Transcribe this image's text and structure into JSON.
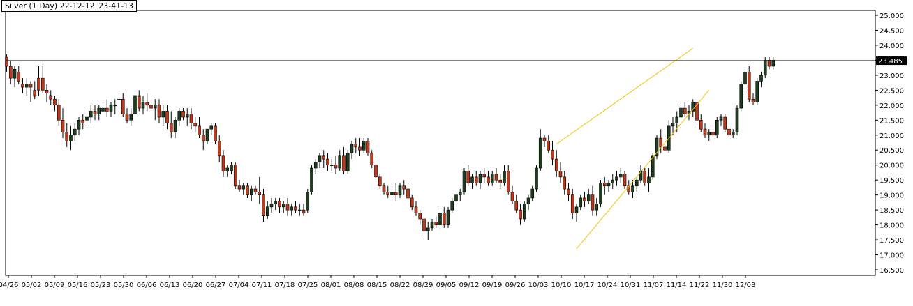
{
  "chart_data": {
    "type": "candlestick",
    "title": "Silver (1 Day) 22-12-12_23-41-13",
    "current_price": 23.485,
    "current_price_label": "23.485",
    "ylim": [
      16.2,
      25.1
    ],
    "yticks": [
      "25.000",
      "24.500",
      "24.000",
      "23.500",
      "23.000",
      "22.500",
      "22.000",
      "21.500",
      "21.000",
      "20.500",
      "20.000",
      "19.500",
      "19.000",
      "18.500",
      "18.000",
      "17.500",
      "17.000",
      "16.500"
    ],
    "xticks": [
      "04/26",
      "05/02",
      "05/09",
      "05/16",
      "05/23",
      "05/30",
      "06/06",
      "06/13",
      "06/20",
      "06/27",
      "07/04",
      "07/11",
      "07/18",
      "07/25",
      "08/01",
      "08/08",
      "08/15",
      "08/22",
      "08/29",
      "09/05",
      "09/12",
      "09/19",
      "09/26",
      "10/03",
      "10/10",
      "10/17",
      "10/24",
      "10/31",
      "11/07",
      "11/14",
      "11/22",
      "11/30",
      "12/08"
    ],
    "colors": {
      "up": "#1f3d1f",
      "down": "#c0391b",
      "trend": "#f2c200",
      "price_line": "#000000"
    },
    "candles": [
      [
        23.6,
        23.7,
        23.1,
        23.3
      ],
      [
        23.3,
        23.5,
        22.7,
        22.9
      ],
      [
        22.9,
        23.3,
        22.6,
        23.2
      ],
      [
        23.1,
        23.3,
        22.7,
        22.8
      ],
      [
        22.7,
        22.9,
        22.4,
        22.6
      ],
      [
        22.6,
        22.9,
        22.3,
        22.7
      ],
      [
        22.7,
        22.8,
        22.1,
        22.6
      ],
      [
        22.5,
        22.8,
        22.2,
        22.3
      ],
      [
        22.9,
        23.3,
        22.3,
        22.5
      ],
      [
        22.9,
        23.3,
        22.4,
        22.5
      ],
      [
        22.5,
        22.7,
        22.1,
        22.4
      ],
      [
        22.3,
        22.5,
        22.0,
        22.2
      ],
      [
        22.2,
        22.3,
        21.8,
        22.0
      ],
      [
        22.0,
        22.2,
        21.3,
        21.5
      ],
      [
        21.5,
        21.9,
        20.9,
        21.1
      ],
      [
        21.1,
        21.4,
        20.6,
        20.8
      ],
      [
        20.8,
        21.3,
        20.5,
        21.0
      ],
      [
        21.0,
        21.4,
        20.8,
        21.2
      ],
      [
        21.2,
        21.6,
        21.0,
        21.5
      ],
      [
        21.5,
        21.7,
        21.2,
        21.4
      ],
      [
        21.5,
        21.9,
        21.3,
        21.6
      ],
      [
        21.6,
        22.0,
        21.4,
        21.8
      ],
      [
        21.8,
        22.0,
        21.5,
        21.7
      ],
      [
        21.7,
        22.0,
        21.5,
        21.9
      ],
      [
        21.8,
        22.1,
        21.6,
        21.9
      ],
      [
        21.9,
        22.2,
        21.6,
        21.8
      ],
      [
        21.8,
        22.1,
        21.6,
        22.0
      ],
      [
        22.0,
        22.2,
        21.7,
        22.0
      ],
      [
        22.2,
        22.4,
        21.9,
        22.2
      ],
      [
        22.2,
        22.4,
        21.6,
        21.7
      ],
      [
        21.7,
        21.9,
        21.4,
        21.5
      ],
      [
        21.5,
        21.9,
        21.3,
        21.7
      ],
      [
        21.7,
        22.4,
        21.6,
        22.3
      ],
      [
        22.3,
        22.5,
        21.8,
        21.9
      ],
      [
        21.9,
        22.3,
        21.7,
        22.1
      ],
      [
        22.1,
        22.4,
        21.8,
        22.0
      ],
      [
        22.0,
        22.3,
        21.8,
        21.9
      ],
      [
        21.9,
        22.2,
        21.5,
        22.0
      ],
      [
        22.0,
        22.2,
        21.4,
        21.6
      ],
      [
        21.6,
        22.0,
        21.3,
        21.8
      ],
      [
        21.8,
        22.0,
        21.2,
        21.4
      ],
      [
        21.4,
        21.8,
        20.9,
        21.1
      ],
      [
        21.1,
        21.6,
        20.9,
        21.5
      ],
      [
        21.5,
        21.9,
        21.3,
        21.8
      ],
      [
        21.8,
        21.9,
        21.5,
        21.6
      ],
      [
        21.6,
        21.9,
        21.3,
        21.7
      ],
      [
        21.7,
        21.9,
        21.2,
        21.4
      ],
      [
        21.4,
        21.6,
        21.1,
        21.3
      ],
      [
        21.3,
        21.6,
        20.9,
        21.0
      ],
      [
        21.0,
        21.2,
        20.5,
        20.8
      ],
      [
        20.8,
        21.2,
        20.7,
        21.2
      ],
      [
        21.2,
        21.4,
        21.0,
        21.3
      ],
      [
        21.3,
        21.4,
        20.7,
        20.8
      ],
      [
        20.8,
        21.0,
        20.1,
        20.3
      ],
      [
        20.3,
        20.5,
        19.6,
        19.8
      ],
      [
        19.8,
        20.0,
        19.6,
        19.9
      ],
      [
        19.8,
        20.1,
        19.7,
        20.0
      ],
      [
        20.0,
        20.1,
        19.2,
        19.3
      ],
      [
        19.3,
        19.5,
        19.1,
        19.2
      ],
      [
        19.2,
        19.4,
        19.0,
        19.3
      ],
      [
        19.3,
        19.4,
        18.9,
        19.0
      ],
      [
        19.0,
        19.3,
        18.8,
        19.2
      ],
      [
        19.2,
        19.3,
        19.0,
        19.1
      ],
      [
        19.1,
        19.6,
        18.7,
        19.0
      ],
      [
        19.0,
        19.2,
        18.1,
        18.3
      ],
      [
        18.3,
        18.8,
        18.2,
        18.6
      ],
      [
        18.6,
        18.9,
        18.4,
        18.7
      ],
      [
        18.7,
        18.9,
        18.5,
        18.8
      ],
      [
        18.8,
        18.9,
        18.4,
        18.6
      ],
      [
        18.6,
        18.8,
        18.4,
        18.7
      ],
      [
        18.7,
        18.9,
        18.3,
        18.5
      ],
      [
        18.5,
        18.7,
        18.3,
        18.6
      ],
      [
        18.6,
        18.8,
        18.4,
        18.5
      ],
      [
        18.5,
        18.7,
        18.3,
        18.5
      ],
      [
        18.5,
        18.7,
        18.3,
        18.4
      ],
      [
        18.5,
        19.2,
        18.4,
        19.1
      ],
      [
        19.1,
        20.0,
        19.0,
        19.9
      ],
      [
        19.9,
        20.2,
        19.7,
        20.1
      ],
      [
        20.1,
        20.4,
        19.9,
        20.3
      ],
      [
        20.3,
        20.5,
        19.9,
        20.2
      ],
      [
        20.2,
        20.4,
        19.8,
        20.0
      ],
      [
        20.0,
        20.2,
        19.8,
        20.0
      ],
      [
        20.0,
        20.3,
        19.7,
        19.9
      ],
      [
        19.9,
        20.5,
        19.8,
        20.3
      ],
      [
        20.3,
        20.6,
        19.7,
        19.8
      ],
      [
        19.8,
        20.5,
        19.7,
        20.4
      ],
      [
        20.4,
        20.8,
        20.2,
        20.7
      ],
      [
        20.7,
        20.9,
        20.4,
        20.6
      ],
      [
        20.6,
        20.9,
        20.3,
        20.5
      ],
      [
        20.5,
        20.9,
        20.4,
        20.8
      ],
      [
        20.8,
        20.9,
        20.3,
        20.4
      ],
      [
        20.4,
        20.5,
        19.9,
        20.0
      ],
      [
        20.0,
        20.2,
        19.5,
        19.6
      ],
      [
        19.6,
        19.7,
        19.2,
        19.3
      ],
      [
        19.3,
        19.4,
        19.0,
        19.1
      ],
      [
        19.1,
        19.3,
        18.9,
        19.0
      ],
      [
        19.0,
        19.3,
        18.9,
        19.1
      ],
      [
        19.1,
        19.4,
        18.8,
        19.0
      ],
      [
        19.0,
        19.4,
        18.9,
        19.3
      ],
      [
        19.3,
        19.5,
        19.0,
        19.2
      ],
      [
        19.2,
        19.4,
        18.8,
        18.9
      ],
      [
        18.9,
        19.0,
        18.5,
        18.6
      ],
      [
        18.6,
        18.8,
        18.3,
        18.4
      ],
      [
        18.4,
        18.5,
        18.0,
        18.2
      ],
      [
        18.2,
        18.3,
        17.6,
        17.8
      ],
      [
        17.8,
        18.1,
        17.5,
        17.9
      ],
      [
        17.9,
        18.2,
        17.8,
        18.1
      ],
      [
        18.1,
        18.3,
        17.9,
        18.0
      ],
      [
        18.0,
        18.5,
        17.9,
        18.4
      ],
      [
        18.4,
        18.6,
        17.9,
        18.0
      ],
      [
        18.0,
        18.6,
        17.9,
        18.5
      ],
      [
        18.5,
        18.9,
        18.4,
        18.8
      ],
      [
        18.8,
        19.1,
        18.6,
        19.0
      ],
      [
        19.0,
        19.2,
        18.8,
        19.1
      ],
      [
        19.1,
        19.9,
        19.0,
        19.8
      ],
      [
        19.8,
        20.0,
        19.3,
        19.4
      ],
      [
        19.4,
        19.7,
        19.2,
        19.6
      ],
      [
        19.6,
        19.8,
        19.3,
        19.4
      ],
      [
        19.4,
        19.8,
        19.2,
        19.7
      ],
      [
        19.7,
        19.9,
        19.4,
        19.6
      ],
      [
        19.6,
        19.8,
        19.3,
        19.4
      ],
      [
        19.4,
        19.8,
        19.3,
        19.7
      ],
      [
        19.7,
        19.9,
        19.4,
        19.5
      ],
      [
        19.5,
        19.7,
        19.2,
        19.4
      ],
      [
        19.4,
        20.0,
        19.3,
        19.8
      ],
      [
        19.8,
        20.0,
        19.0,
        19.1
      ],
      [
        19.1,
        19.3,
        18.7,
        18.8
      ],
      [
        18.8,
        19.0,
        18.4,
        18.5
      ],
      [
        18.5,
        18.7,
        18.0,
        18.2
      ],
      [
        18.2,
        18.8,
        18.1,
        18.7
      ],
      [
        18.7,
        19.0,
        18.5,
        18.9
      ],
      [
        18.9,
        19.3,
        18.8,
        19.2
      ],
      [
        19.2,
        20.0,
        19.1,
        19.9
      ],
      [
        19.9,
        21.2,
        19.8,
        20.9
      ],
      [
        20.9,
        21.0,
        20.6,
        20.8
      ],
      [
        20.8,
        21.0,
        20.4,
        20.5
      ],
      [
        20.5,
        20.8,
        20.0,
        20.2
      ],
      [
        20.2,
        20.5,
        19.6,
        19.8
      ],
      [
        19.8,
        20.1,
        19.4,
        19.6
      ],
      [
        19.6,
        19.8,
        19.0,
        19.2
      ],
      [
        19.2,
        19.4,
        18.8,
        19.0
      ],
      [
        19.0,
        19.2,
        18.2,
        18.4
      ],
      [
        18.4,
        18.7,
        18.1,
        18.6
      ],
      [
        18.6,
        19.0,
        18.5,
        18.9
      ],
      [
        18.9,
        19.1,
        18.6,
        18.8
      ],
      [
        18.8,
        19.2,
        18.7,
        19.0
      ],
      [
        19.0,
        19.3,
        18.3,
        18.5
      ],
      [
        18.5,
        18.9,
        18.3,
        18.7
      ],
      [
        18.7,
        19.5,
        18.6,
        19.4
      ],
      [
        19.4,
        19.6,
        19.0,
        19.3
      ],
      [
        19.3,
        19.5,
        19.1,
        19.4
      ],
      [
        19.4,
        19.7,
        19.2,
        19.5
      ],
      [
        19.5,
        19.8,
        19.3,
        19.6
      ],
      [
        19.6,
        19.9,
        19.4,
        19.7
      ],
      [
        19.7,
        19.8,
        19.2,
        19.3
      ],
      [
        19.3,
        19.5,
        19.0,
        19.1
      ],
      [
        19.1,
        19.5,
        18.9,
        19.3
      ],
      [
        19.3,
        19.6,
        19.1,
        19.5
      ],
      [
        19.5,
        20.0,
        19.4,
        19.8
      ],
      [
        19.8,
        19.9,
        19.3,
        19.4
      ],
      [
        19.4,
        19.9,
        19.1,
        19.6
      ],
      [
        19.6,
        20.4,
        19.5,
        20.3
      ],
      [
        20.3,
        21.0,
        20.2,
        20.9
      ],
      [
        20.9,
        21.2,
        20.4,
        20.6
      ],
      [
        20.6,
        20.8,
        20.3,
        20.5
      ],
      [
        20.5,
        21.5,
        20.4,
        21.3
      ],
      [
        21.3,
        21.6,
        21.0,
        21.4
      ],
      [
        21.4,
        21.8,
        21.1,
        21.6
      ],
      [
        21.6,
        22.0,
        21.4,
        21.9
      ],
      [
        21.9,
        22.1,
        21.6,
        21.7
      ],
      [
        21.7,
        22.0,
        21.5,
        21.8
      ],
      [
        21.8,
        22.2,
        21.6,
        22.1
      ],
      [
        22.1,
        22.2,
        21.3,
        21.5
      ],
      [
        21.5,
        21.7,
        21.1,
        21.2
      ],
      [
        21.2,
        21.4,
        20.9,
        21.0
      ],
      [
        21.0,
        21.2,
        20.8,
        21.1
      ],
      [
        21.1,
        21.3,
        20.9,
        21.0
      ],
      [
        21.0,
        21.6,
        20.9,
        21.5
      ],
      [
        21.5,
        21.7,
        21.3,
        21.6
      ],
      [
        21.6,
        21.7,
        21.1,
        21.2
      ],
      [
        21.2,
        21.3,
        20.9,
        21.0
      ],
      [
        21.0,
        21.2,
        20.9,
        21.1
      ],
      [
        21.1,
        22.0,
        21.0,
        21.9
      ],
      [
        21.9,
        22.8,
        21.8,
        22.7
      ],
      [
        22.7,
        23.2,
        22.5,
        23.1
      ],
      [
        23.1,
        23.3,
        22.1,
        22.2
      ],
      [
        22.2,
        22.4,
        22.0,
        22.1
      ],
      [
        22.1,
        22.9,
        22.0,
        22.8
      ],
      [
        22.8,
        23.1,
        22.6,
        23.0
      ],
      [
        23.0,
        23.6,
        22.9,
        23.5
      ],
      [
        23.5,
        23.6,
        23.2,
        23.3
      ],
      [
        23.3,
        23.6,
        23.2,
        23.5
      ]
    ],
    "trendlines": [
      {
        "points": [
          [
            137,
            20.7
          ],
          [
            171,
            23.9
          ]
        ]
      },
      {
        "points": [
          [
            142,
            17.2
          ],
          [
            175,
            22.5
          ]
        ]
      }
    ]
  }
}
